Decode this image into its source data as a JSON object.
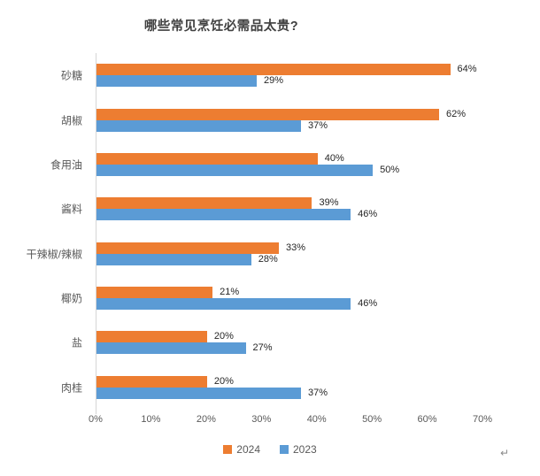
{
  "title": "哪些常见烹饪必需品太贵?",
  "chart_data": {
    "type": "bar",
    "orientation": "horizontal",
    "title": "哪些常见烹饪必需品太贵?",
    "categories": [
      "砂糖",
      "胡椒",
      "食用油",
      "酱料",
      "干辣椒/辣椒",
      "椰奶",
      "盐",
      "肉桂"
    ],
    "series": [
      {
        "name": "2024",
        "color": "#ED7D31",
        "values": [
          64,
          62,
          40,
          39,
          33,
          21,
          20,
          20
        ]
      },
      {
        "name": "2023",
        "color": "#5B9BD5",
        "values": [
          29,
          37,
          50,
          46,
          28,
          46,
          27,
          37
        ]
      }
    ],
    "value_suffix": "%",
    "data_labels": true,
    "xlabel": "",
    "ylabel": "",
    "xlim": [
      0,
      70
    ],
    "axis_ticks": [
      "0%",
      "10%",
      "20%",
      "30%",
      "40%",
      "50%",
      "60%",
      "70%"
    ],
    "grid": false,
    "legend_position": "bottom"
  },
  "colors": {
    "series_2024": "#ED7D31",
    "series_2023": "#5B9BD5",
    "axis_line": "#d6d6d6",
    "axis_text": "#595959",
    "title_text": "#404040"
  },
  "misc": {
    "return_mark": "↵"
  }
}
